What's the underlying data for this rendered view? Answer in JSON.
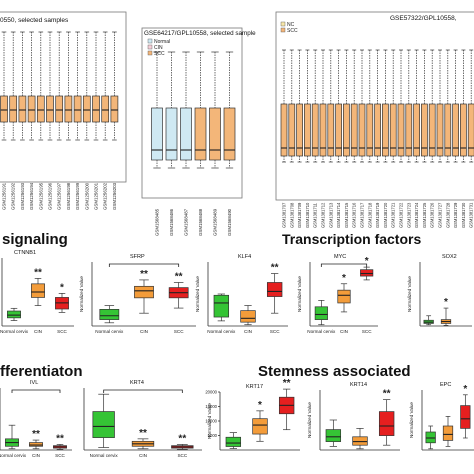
{
  "colors": {
    "normal": "#cfe9f3",
    "cin": "#f6cfd8",
    "scc": "#f3b679",
    "box_green": "#35c435",
    "box_orange": "#f39c3a",
    "box_red": "#e51f1f",
    "significance": "#222222"
  },
  "sections": [
    {
      "key": "signaling",
      "title": "signaling"
    },
    {
      "key": "transcription",
      "title": "Transcription factors"
    },
    {
      "key": "differentiation",
      "title": "fferentiaton"
    },
    {
      "key": "stemness",
      "title": "Stemness associated"
    }
  ],
  "chart_data": [
    {
      "type": "box",
      "panel": "sample-normalization-1",
      "title": "0550, selected samples",
      "series_colors": [
        "#f3b679"
      ],
      "x": [
        "GSM1256191",
        "GSM1256192",
        "GSM1256193",
        "GSM1256194",
        "GSM1256195",
        "GSM1256196",
        "GSM1256197",
        "GSM1256198",
        "GSM1256199",
        "GSM1256200",
        "GSM1256201",
        "GSM1256202",
        "GSM1256203"
      ],
      "boxes": [
        {
          "min": 0,
          "q1": 0,
          "median": 0,
          "q3": 0,
          "max": 0
        }
      ],
      "note": "partially visible, left edge cropped"
    },
    {
      "type": "box",
      "panel": "sample-normalization-2",
      "title": "GSE64217/GPL10558, selected sample",
      "legend": [
        "Normal",
        "CIN",
        "SCC"
      ],
      "legend_position": "top-left",
      "x": [
        "GSM1568485",
        "GSM1568486",
        "GSM1568487",
        "GSM1568488",
        "GSM1568489",
        "GSM1568490"
      ],
      "groups": [
        "Normal",
        "Normal",
        "Normal",
        "SCC",
        "SCC",
        "SCC"
      ]
    },
    {
      "type": "box",
      "panel": "sample-normalization-3",
      "title": "GSE57322/GPL10558,",
      "legend": [
        "NC",
        "SCC"
      ],
      "legend_position": "top-left",
      "x": [
        "GSM1381707",
        "GSM1381708",
        "GSM1381709",
        "GSM1381710",
        "GSM1381711",
        "GSM1381712",
        "GSM1381713",
        "GSM1381714",
        "GSM1381715",
        "GSM1381716",
        "GSM1381717",
        "GSM1381718",
        "GSM1381719",
        "GSM1381720",
        "GSM1381721",
        "GSM1381722",
        "GSM1381723",
        "GSM1381724",
        "GSM1381725",
        "GSM1381726",
        "GSM1381727",
        "GSM1381728",
        "GSM1381729",
        "GSM1381730",
        "GSM1381731"
      ]
    },
    {
      "type": "box",
      "panel": "CTNNB1",
      "title": "CTNNB1",
      "categories": [
        "Normal cervix",
        "CIN",
        "SCC"
      ],
      "significance": [
        "",
        "**",
        "*"
      ],
      "ylim": [
        0,
        100
      ]
    },
    {
      "type": "box",
      "panel": "SFRP",
      "title": "SFRP",
      "ylabel": "Normalized Value",
      "categories": [
        "Normal cervix",
        "CIN",
        "SCC"
      ],
      "significance": [
        "",
        "**",
        "**"
      ],
      "ylim": [
        0,
        100
      ]
    },
    {
      "type": "box",
      "panel": "KLF4",
      "title": "KLF4",
      "ylabel": "Normalized Value",
      "categories": [
        "Normal cervix",
        "CIN",
        "SCC"
      ],
      "significance": [
        "",
        "",
        "**"
      ],
      "ylim": [
        0,
        100
      ]
    },
    {
      "type": "box",
      "panel": "MYC",
      "title": "MYC",
      "ylabel": "Normalized Value",
      "categories": [
        "Normal cervix",
        "CIN",
        "SCC"
      ],
      "significance": [
        "",
        "*",
        "*"
      ],
      "ylim": [
        0,
        100
      ]
    },
    {
      "type": "box",
      "panel": "SOX2",
      "title": "SOX2",
      "ylabel": "Normalized Value",
      "categories": [
        "Normal cervix",
        "CIN",
        "SCC"
      ],
      "significance": [
        "",
        "*",
        ""
      ],
      "ylim": [
        0,
        100
      ]
    },
    {
      "type": "box",
      "panel": "IVL",
      "title": "IVL",
      "categories": [
        "Normal cervix",
        "CIN",
        "SCC"
      ],
      "significance": [
        "",
        "**",
        "**"
      ],
      "ylim": [
        0,
        100
      ]
    },
    {
      "type": "box",
      "panel": "KRT4",
      "title": "KRT4",
      "categories": [
        "Normal cervix",
        "CIN",
        "SCC"
      ],
      "significance": [
        "",
        "**",
        "**"
      ],
      "ylim": [
        0,
        100
      ]
    },
    {
      "type": "box",
      "panel": "KRT17",
      "title": "KRT17",
      "ylabel": "Normalized Value",
      "yticks": [
        "5000",
        "10000",
        "15000",
        "20000"
      ],
      "categories": [
        "Normal cervix",
        "CIN",
        "SCC"
      ],
      "significance": [
        "",
        "*",
        "**"
      ],
      "ylim": [
        0,
        20000
      ]
    },
    {
      "type": "box",
      "panel": "KRT14",
      "title": "KRT14",
      "ylabel": "Normalized Value",
      "categories": [
        "Normal cervix",
        "CIN",
        "SCC"
      ],
      "significance": [
        "",
        "",
        "**"
      ],
      "ylim": [
        0,
        100
      ]
    },
    {
      "type": "box",
      "panel": "EPCAM",
      "title": "EPC",
      "ylabel": "Normalized Value",
      "categories": [
        "Normal cervix",
        "CIN",
        "SCC"
      ],
      "significance": [
        "",
        "",
        "*"
      ],
      "ylim": [
        0,
        100
      ]
    }
  ],
  "boxplot_values": {
    "CTNNB1": [
      {
        "min": 8,
        "q1": 12,
        "median": 16,
        "q3": 22,
        "max": 26
      },
      {
        "min": 30,
        "q1": 42,
        "median": 50,
        "q3": 62,
        "max": 70
      },
      {
        "min": 20,
        "q1": 25,
        "median": 34,
        "q3": 42,
        "max": 48
      }
    ],
    "SFRP": [
      {
        "min": 5,
        "q1": 10,
        "median": 16,
        "q3": 26,
        "max": 32
      },
      {
        "min": 20,
        "q1": 44,
        "median": 55,
        "q3": 62,
        "max": 72
      },
      {
        "min": 28,
        "q1": 44,
        "median": 52,
        "q3": 60,
        "max": 68
      }
    ],
    "KLF4": [
      {
        "min": 8,
        "q1": 14,
        "median": 36,
        "q3": 48,
        "max": 50
      },
      {
        "min": 2,
        "q1": 6,
        "median": 12,
        "q3": 24,
        "max": 32
      },
      {
        "min": 20,
        "q1": 46,
        "median": 54,
        "q3": 68,
        "max": 82
      }
    ],
    "MYC": [
      {
        "min": 2,
        "q1": 10,
        "median": 18,
        "q3": 30,
        "max": 40
      },
      {
        "min": 22,
        "q1": 36,
        "median": 48,
        "q3": 56,
        "max": 66
      },
      {
        "min": 72,
        "q1": 78,
        "median": 82,
        "q3": 88,
        "max": 92
      }
    ],
    "SOX2": [
      {
        "min": 2,
        "q1": 4,
        "median": 6,
        "q3": 9,
        "max": 16
      },
      {
        "min": 1,
        "q1": 4,
        "median": 7,
        "q3": 10,
        "max": 28
      },
      {
        "min": 0,
        "q1": 0,
        "median": 0,
        "q3": 0,
        "max": 0
      }
    ],
    "IVL": [
      {
        "min": 2,
        "q1": 6,
        "median": 12,
        "q3": 18,
        "max": 40
      },
      {
        "min": 2,
        "q1": 6,
        "median": 8,
        "q3": 12,
        "max": 16
      },
      {
        "min": 1,
        "q1": 3,
        "median": 5,
        "q3": 7,
        "max": 9
      }
    ],
    "KRT4": [
      {
        "min": 4,
        "q1": 20,
        "median": 38,
        "q3": 62,
        "max": 90
      },
      {
        "min": 2,
        "q1": 6,
        "median": 10,
        "q3": 14,
        "max": 18
      },
      {
        "min": 1,
        "q1": 3,
        "median": 5,
        "q3": 7,
        "max": 9
      }
    ],
    "KRT17": [
      {
        "min": 500,
        "q1": 1200,
        "median": 2400,
        "q3": 4400,
        "max": 6000
      },
      {
        "min": 3000,
        "q1": 5500,
        "median": 8600,
        "q3": 10800,
        "max": 13500
      },
      {
        "min": 7000,
        "q1": 12500,
        "median": 15400,
        "q3": 18200,
        "max": 21000
      }
    ],
    "KRT14": [
      {
        "min": 6,
        "q1": 14,
        "median": 22,
        "q3": 34,
        "max": 50
      },
      {
        "min": 2,
        "q1": 8,
        "median": 14,
        "q3": 22,
        "max": 36
      },
      {
        "min": 8,
        "q1": 24,
        "median": 40,
        "q3": 64,
        "max": 84
      }
    ],
    "EPCAM": [
      {
        "min": 2,
        "q1": 12,
        "median": 20,
        "q3": 30,
        "max": 40
      },
      {
        "min": 6,
        "q1": 16,
        "median": 26,
        "q3": 40,
        "max": 56
      },
      {
        "min": 20,
        "q1": 36,
        "median": 52,
        "q3": 74,
        "max": 92
      }
    ]
  },
  "labels": {
    "panel1_title": "0550, selected samples",
    "panel2_title": "GSE64217/GPL10558, selected sample",
    "panel3_title": "GSE57322/GPL10558,",
    "legend2": [
      "Normal",
      "CIN",
      "SCC"
    ],
    "legend3": [
      "NC",
      "SCC"
    ],
    "x_normal": "Normal cervix",
    "x_cin": "CIN",
    "x_scc": "SCC",
    "ylabel": "Normalized Value"
  }
}
